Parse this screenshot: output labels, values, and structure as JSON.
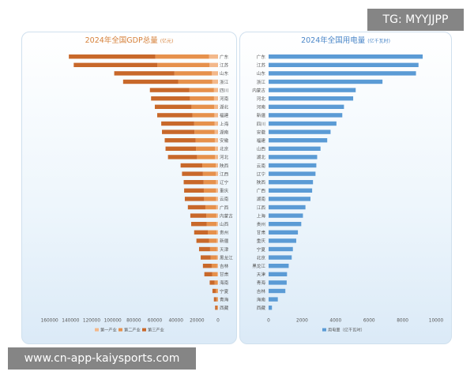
{
  "gdp": {
    "title": "2024年全国GDP总量",
    "unit": "(亿元)",
    "legend": [
      "第一产业",
      "第二产业",
      "第三产业"
    ],
    "colors": [
      "#f3b88a",
      "#e6914c",
      "#c8682a"
    ],
    "xticks": [
      160000,
      140000,
      120000,
      100000,
      80000,
      60000,
      40000,
      20000,
      0
    ],
    "xlim": [
      0,
      165000
    ],
    "provinces": [
      "广东",
      "江苏",
      "山东",
      "浙江",
      "四川",
      "河南",
      "湖北",
      "福建",
      "上海",
      "湖南",
      "安徽",
      "北京",
      "河北",
      "陕西",
      "江西",
      "辽宁",
      "重庆",
      "云南",
      "广西",
      "内蒙古",
      "山西",
      "贵州",
      "新疆",
      "天津",
      "黑龙江",
      "吉林",
      "甘肃",
      "海南",
      "宁夏",
      "青海",
      "西藏"
    ],
    "totals": [
      141634,
      137008,
      98566,
      90131,
      64697,
      63589,
      60013,
      57761,
      53927,
      53231,
      50625,
      49844,
      47527,
      35538,
      34203,
      32613,
      32193,
      31534,
      28649,
      26314,
      25494,
      22667,
      20534,
      18024,
      16476,
      14362,
      13003,
      7928,
      5315,
      3951,
      2765
    ]
  },
  "power": {
    "title": "2024年全国用电量",
    "unit": "(亿千瓦时)",
    "legend": "用电量（亿千瓦时）",
    "color": "#5b9bd5",
    "xticks": [
      0,
      2000,
      4000,
      6000,
      8000,
      10000
    ],
    "xlim": [
      0,
      10000
    ],
    "provinces": [
      "广东",
      "江苏",
      "山东",
      "浙江",
      "内蒙古",
      "河北",
      "河南",
      "新疆",
      "四川",
      "安徽",
      "福建",
      "山西",
      "湖北",
      "云南",
      "辽宁",
      "陕西",
      "广西",
      "湖南",
      "江西",
      "上海",
      "贵州",
      "甘肃",
      "重庆",
      "宁夏",
      "北京",
      "黑龙江",
      "天津",
      "青海",
      "吉林",
      "海南",
      "西藏"
    ],
    "values": [
      9200,
      8950,
      8800,
      6800,
      5200,
      5050,
      4500,
      4400,
      4050,
      3700,
      3500,
      3100,
      2900,
      2850,
      2800,
      2650,
      2600,
      2500,
      2200,
      2050,
      1950,
      1750,
      1650,
      1450,
      1380,
      1200,
      1100,
      1080,
      1000,
      550,
      200
    ]
  },
  "watermarks": {
    "tg": "TG: MYYJJPP",
    "url": "www.cn-app-kaiysports.com"
  }
}
